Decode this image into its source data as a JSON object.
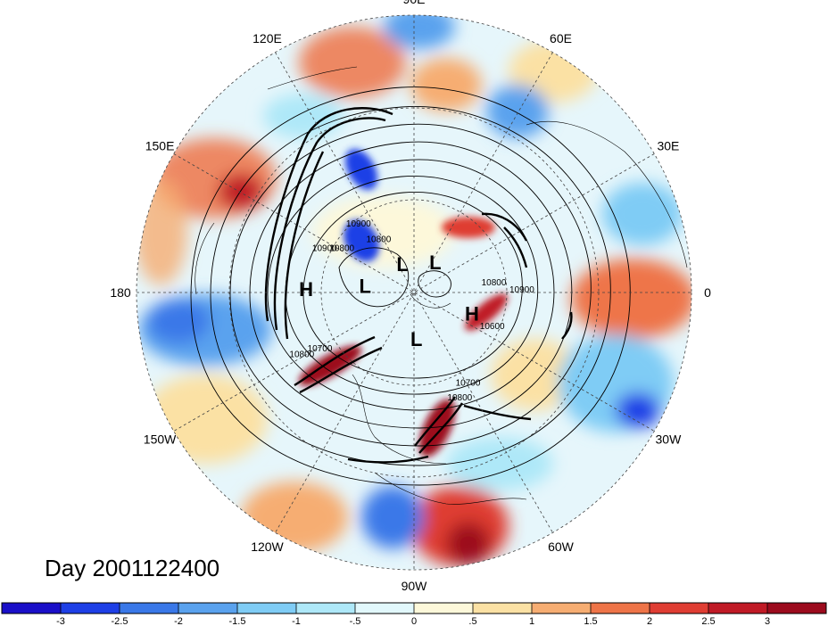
{
  "title": "Day 2001122400",
  "longitude_labels": [
    "90E",
    "60E",
    "30E",
    "0",
    "30W",
    "60W",
    "90W",
    "120W",
    "150W",
    "180",
    "150E",
    "120E"
  ],
  "pressure_systems": [
    {
      "type": "H",
      "lon": 178,
      "lat": 55
    },
    {
      "type": "L",
      "lon": 172,
      "lat": 74
    },
    {
      "type": "L",
      "lon": 112,
      "lat": 80
    },
    {
      "type": "L",
      "lon": 55,
      "lat": 78
    },
    {
      "type": "H",
      "lon": -20,
      "lat": 70
    },
    {
      "type": "L",
      "lon": -87,
      "lat": 75
    }
  ],
  "contour_labels": [
    {
      "text": "10900",
      "lon": 155,
      "lat": 58
    },
    {
      "text": "10800",
      "lon": 150,
      "lat": 63
    },
    {
      "text": "10800",
      "lon": 125,
      "lat": 70
    },
    {
      "text": "10900",
      "lon": 130,
      "lat": 62
    },
    {
      "text": "10800",
      "lon": 5,
      "lat": 64
    },
    {
      "text": "10900",
      "lon": 0,
      "lat": 55
    },
    {
      "text": "10600",
      "lon": -25,
      "lat": 62
    },
    {
      "text": "10700",
      "lon": -60,
      "lat": 55
    },
    {
      "text": "10800",
      "lon": -67,
      "lat": 52
    },
    {
      "text": "10700",
      "lon": -148,
      "lat": 54
    },
    {
      "text": "10800",
      "lon": -150,
      "lat": 48
    }
  ],
  "colorbar": {
    "ticks": [
      "-3",
      "-2.5",
      "-2",
      "-1.5",
      "-1",
      "-.5",
      "0",
      ".5",
      "1",
      "1.5",
      "2",
      "2.5",
      "3"
    ],
    "colors": [
      "#1a0fc8",
      "#1e3fe6",
      "#3a78e8",
      "#5aa2ee",
      "#7fccf5",
      "#aee8f8",
      "#e2f8fc",
      "#fdf8da",
      "#fbe1a4",
      "#f6ad72",
      "#ee7448",
      "#df3d33",
      "#c01a26",
      "#9c0b1d"
    ]
  }
}
